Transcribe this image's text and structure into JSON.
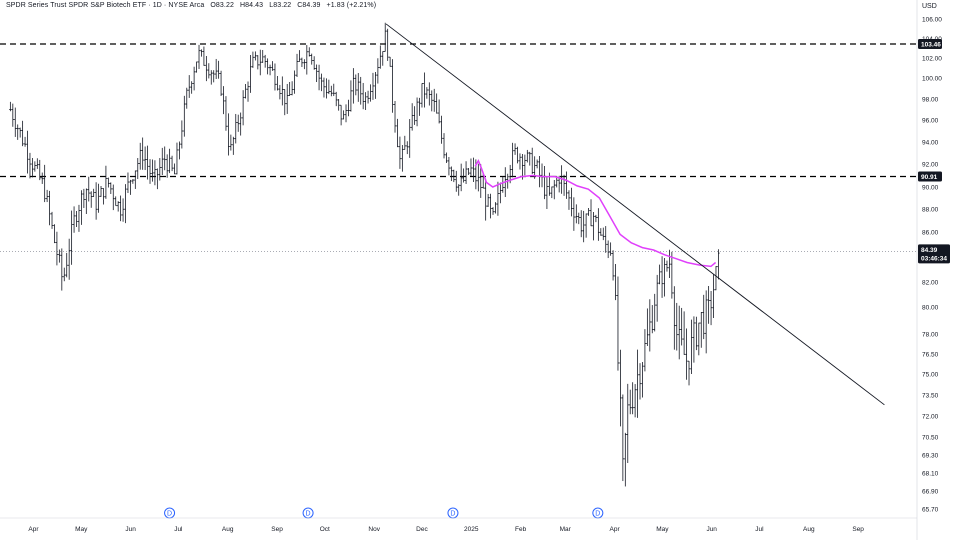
{
  "header": {
    "symbol": "SPDR Series Trust SPDR S&P Biotech ETF · 1D · NYSE Arca",
    "open": "O83.22",
    "high": "H84.43",
    "low": "L83.22",
    "close": "C84.39",
    "change": "+1.83 (+2.21%)"
  },
  "currency": "USD",
  "colors": {
    "bars": "#131722",
    "ma": "#e040fb",
    "event": "#2962ff",
    "price_badge": "#131722",
    "axis_text": "#131722"
  },
  "chart_data": {
    "type": "ohlc-bar",
    "y_ticks": [
      106.0,
      104.0,
      102.0,
      100.0,
      98.0,
      96.0,
      94.0,
      92.0,
      90.0,
      88.0,
      86.0,
      84.0,
      82.0,
      80.0,
      78.0,
      76.5,
      75.0,
      73.5,
      72.0,
      70.5,
      69.3,
      68.1,
      66.9,
      65.7
    ],
    "y_tick_labels": [
      "106.00",
      "104.00",
      "102.00",
      "100.00",
      "98.00",
      "96.00",
      "94.00",
      "92.00",
      "90.00",
      "88.00",
      "86.00",
      "84.00",
      "82.00",
      "80.00",
      "78.00",
      "76.50",
      "75.00",
      "73.50",
      "72.00",
      "70.50",
      "69.30",
      "68.10",
      "66.90",
      "65.70"
    ],
    "x_labels": [
      "Apr",
      "May",
      "Jun",
      "Jul",
      "Aug",
      "Sep",
      "Oct",
      "Nov",
      "Dec",
      "2025",
      "Feb",
      "Mar",
      "Apr",
      "May",
      "Jun",
      "Jul",
      "Aug",
      "Sep"
    ],
    "horizontal_levels": [
      {
        "price": 103.46,
        "label": "103.46",
        "style": "dashed"
      },
      {
        "price": 90.91,
        "label": "90.91",
        "style": "dashed"
      }
    ],
    "last_price": {
      "price": 84.39,
      "label": "84.39",
      "countdown": "03:46:34",
      "style": "dotted"
    },
    "trendline": {
      "from": {
        "date": "2024-11-11",
        "price": 105.5
      },
      "to": {
        "date": "2025-09-20",
        "price": 72.8
      }
    },
    "events": [
      {
        "date": "2024-06-28",
        "label": "D"
      },
      {
        "date": "2024-09-23",
        "label": "D"
      },
      {
        "date": "2024-12-23",
        "label": "D"
      },
      {
        "date": "2025-03-24",
        "label": "D"
      }
    ],
    "moving_average": {
      "points": [
        [
          "2025-01-06",
          91.8
        ],
        [
          "2025-01-08",
          92.3
        ],
        [
          "2025-01-10",
          91.6
        ],
        [
          "2025-01-13",
          90.4
        ],
        [
          "2025-01-17",
          90.0
        ],
        [
          "2025-01-22",
          90.3
        ],
        [
          "2025-01-28",
          90.6
        ],
        [
          "2025-02-04",
          90.9
        ],
        [
          "2025-02-11",
          91.0
        ],
        [
          "2025-02-18",
          90.9
        ],
        [
          "2025-02-25",
          90.9
        ],
        [
          "2025-03-04",
          90.6
        ],
        [
          "2025-03-11",
          90.1
        ],
        [
          "2025-03-18",
          89.8
        ],
        [
          "2025-03-25",
          89.0
        ],
        [
          "2025-03-31",
          87.5
        ],
        [
          "2025-04-07",
          85.8
        ],
        [
          "2025-04-14",
          85.1
        ],
        [
          "2025-04-21",
          84.7
        ],
        [
          "2025-04-28",
          84.5
        ],
        [
          "2025-05-05",
          84.1
        ],
        [
          "2025-05-12",
          83.8
        ],
        [
          "2025-05-19",
          83.5
        ],
        [
          "2025-05-27",
          83.3
        ],
        [
          "2025-06-03",
          83.2
        ],
        [
          "2025-06-06",
          83.5
        ]
      ]
    },
    "price_path": [
      [
        "2024-03-20",
        97.0
      ],
      [
        "2024-03-27",
        94.5
      ],
      [
        "2024-04-03",
        92.0
      ],
      [
        "2024-04-10",
        90.0
      ],
      [
        "2024-04-17",
        85.0
      ],
      [
        "2024-04-22",
        82.0
      ],
      [
        "2024-04-29",
        87.0
      ],
      [
        "2024-05-06",
        90.0
      ],
      [
        "2024-05-13",
        88.5
      ],
      [
        "2024-05-20",
        90.5
      ],
      [
        "2024-05-28",
        88.0
      ],
      [
        "2024-06-04",
        91.0
      ],
      [
        "2024-06-11",
        93.0
      ],
      [
        "2024-06-18",
        90.5
      ],
      [
        "2024-06-25",
        92.5
      ],
      [
        "2024-07-01",
        91.0
      ],
      [
        "2024-07-09",
        98.5
      ],
      [
        "2024-07-16",
        102.5
      ],
      [
        "2024-07-23",
        101.0
      ],
      [
        "2024-07-30",
        99.5
      ],
      [
        "2024-08-05",
        93.0
      ],
      [
        "2024-08-12",
        97.0
      ],
      [
        "2024-08-19",
        101.5
      ],
      [
        "2024-08-26",
        102.0
      ],
      [
        "2024-09-03",
        100.0
      ],
      [
        "2024-09-10",
        97.5
      ],
      [
        "2024-09-17",
        101.5
      ],
      [
        "2024-09-24",
        103.0
      ],
      [
        "2024-10-01",
        99.5
      ],
      [
        "2024-10-08",
        98.5
      ],
      [
        "2024-10-15",
        96.0
      ],
      [
        "2024-10-22",
        99.5
      ],
      [
        "2024-10-29",
        98.0
      ],
      [
        "2024-11-05",
        101.0
      ],
      [
        "2024-11-11",
        104.5
      ],
      [
        "2024-11-15",
        98.0
      ],
      [
        "2024-11-20",
        92.0
      ],
      [
        "2024-11-27",
        95.5
      ],
      [
        "2024-12-04",
        99.0
      ],
      [
        "2024-12-11",
        97.5
      ],
      [
        "2024-12-18",
        93.0
      ],
      [
        "2024-12-27",
        90.0
      ],
      [
        "2025-01-03",
        91.5
      ],
      [
        "2025-01-10",
        90.0
      ],
      [
        "2025-01-17",
        87.0
      ],
      [
        "2025-01-24",
        91.0
      ],
      [
        "2025-01-31",
        93.0
      ],
      [
        "2025-02-07",
        92.5
      ],
      [
        "2025-02-14",
        91.5
      ],
      [
        "2025-02-21",
        89.0
      ],
      [
        "2025-02-28",
        91.0
      ],
      [
        "2025-03-07",
        88.5
      ],
      [
        "2025-03-14",
        86.5
      ],
      [
        "2025-03-21",
        87.5
      ],
      [
        "2025-03-28",
        85.0
      ],
      [
        "2025-04-02",
        84.5
      ],
      [
        "2025-04-04",
        80.0
      ],
      [
        "2025-04-08",
        70.0
      ],
      [
        "2025-04-09",
        67.2
      ],
      [
        "2025-04-11",
        72.0
      ],
      [
        "2025-04-17",
        74.5
      ],
      [
        "2025-04-24",
        77.5
      ],
      [
        "2025-05-01",
        82.0
      ],
      [
        "2025-05-08",
        83.5
      ],
      [
        "2025-05-13",
        77.5
      ],
      [
        "2025-05-19",
        76.0
      ],
      [
        "2025-05-27",
        79.0
      ],
      [
        "2025-06-02",
        79.5
      ],
      [
        "2025-06-06",
        82.5
      ],
      [
        "2025-06-09",
        84.3
      ]
    ]
  }
}
